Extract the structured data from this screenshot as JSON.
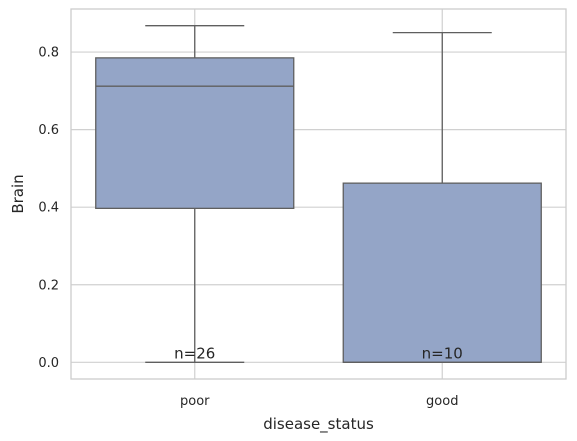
{
  "chart_data": {
    "type": "box",
    "title": "",
    "xlabel": "disease_status",
    "ylabel": "Brain",
    "categories": [
      "poor",
      "good"
    ],
    "boxes": [
      {
        "category": "poor",
        "whisker_low": 0.0,
        "q1": 0.397,
        "median": 0.712,
        "q3": 0.785,
        "whisker_high": 0.868,
        "count_label": "n=26"
      },
      {
        "category": "good",
        "whisker_low": 0.0,
        "q1": 0.0,
        "median": 0.0,
        "q3": 0.462,
        "whisker_high": 0.85,
        "count_label": "n=10"
      }
    ],
    "ylim": [
      -0.043,
      0.911
    ],
    "yticks": [
      0.0,
      0.2,
      0.4,
      0.6,
      0.8
    ],
    "ytick_labels": [
      "0.0",
      "0.2",
      "0.4",
      "0.6",
      "0.8"
    ],
    "grid": true,
    "box_color": "#94a5c7",
    "line_color": "#5f5f5f",
    "grid_color": "#d0d0d0",
    "spine_color": "#cccccc"
  }
}
